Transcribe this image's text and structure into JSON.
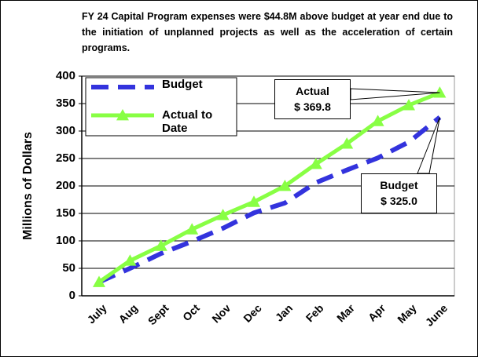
{
  "chart_data": {
    "type": "line",
    "title": "FY 24 Capital Program expenses were $44.8M above budget at year end due to the initiation of unplanned projects as well as the acceleration of certain programs.",
    "y_label": "Millions of Dollars",
    "categories": [
      "July",
      "Aug",
      "Sept",
      "Oct",
      "Nov",
      "Dec",
      "Jan",
      "Feb",
      "Mar",
      "Apr",
      "May",
      "June"
    ],
    "series": [
      {
        "name": "Budget",
        "color": "#3333dd",
        "values": [
          25,
          50,
          77,
          99,
          123,
          151,
          169,
          206,
          229,
          251,
          280,
          325
        ]
      },
      {
        "name": "Actual to Date",
        "color": "#88ff44",
        "values": [
          25,
          64,
          91,
          121,
          147,
          171,
          200,
          240,
          277,
          318,
          347,
          369.8
        ]
      }
    ],
    "annotations": [
      {
        "lines": [
          "Actual",
          "$ 369.8"
        ]
      },
      {
        "lines": [
          "Budget",
          "$ 325.0"
        ]
      }
    ],
    "ylim": [
      0,
      400
    ],
    "yticks": [
      0,
      50,
      100,
      150,
      200,
      250,
      300,
      350,
      400
    ],
    "grid": true
  }
}
